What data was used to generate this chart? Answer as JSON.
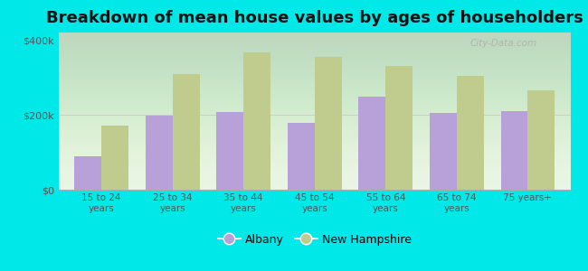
{
  "title": "Breakdown of mean house values by ages of householders",
  "categories": [
    "15 to 24\nyears",
    "25 to 34\nyears",
    "35 to 44\nyears",
    "45 to 54\nyears",
    "55 to 64\nyears",
    "65 to 74\nyears",
    "75 years+"
  ],
  "albany_values": [
    90000,
    198000,
    208000,
    178000,
    248000,
    205000,
    210000
  ],
  "nh_values": [
    172000,
    310000,
    368000,
    355000,
    330000,
    305000,
    265000
  ],
  "albany_color": "#b8a0d8",
  "nh_color": "#c0cc8e",
  "background_top": "#e8f5e0",
  "background_bottom": "#f5fdf0",
  "outer_background": "#00e8e8",
  "ylabel_ticks": [
    "$0",
    "$200k",
    "$400k"
  ],
  "ytick_values": [
    0,
    200000,
    400000
  ],
  "ylim": [
    0,
    420000
  ],
  "bar_width": 0.38,
  "legend_albany": "Albany",
  "legend_nh": "New Hampshire",
  "title_fontsize": 13,
  "watermark": "City-Data.com"
}
